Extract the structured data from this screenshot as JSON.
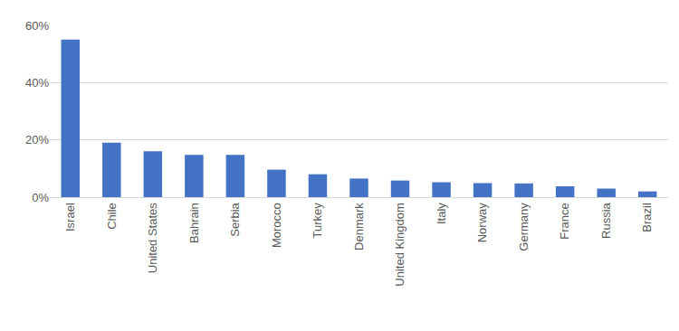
{
  "chart_data": {
    "type": "bar",
    "categories": [
      "Israel",
      "Chile",
      "United States",
      "Bahrain",
      "Serbia",
      "Morocco",
      "Turkey",
      "Denmark",
      "United Kingdom",
      "Italy",
      "Norway",
      "Germany",
      "France",
      "Russia",
      "Brazil"
    ],
    "values": [
      55,
      19,
      16,
      14.8,
      14.8,
      9.6,
      8,
      6.5,
      5.8,
      5.2,
      4.9,
      4.8,
      3.8,
      3,
      2
    ],
    "color": "#4472c4",
    "ylim": [
      0,
      60
    ],
    "yticks": [
      {
        "value": 0,
        "label": "0%"
      },
      {
        "value": 20,
        "label": "20%"
      },
      {
        "value": 40,
        "label": "40%"
      },
      {
        "value": 60,
        "label": "60%"
      }
    ],
    "grid": true
  }
}
